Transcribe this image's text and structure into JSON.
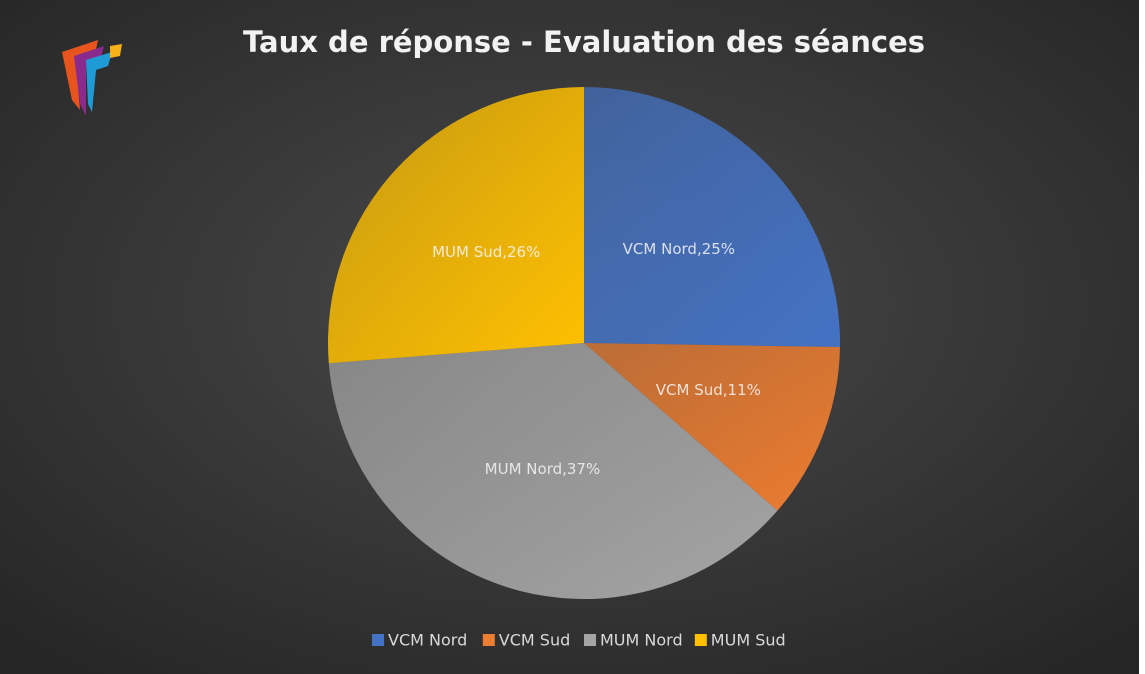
{
  "chart_data": {
    "type": "pie",
    "title": "Taux de réponse - Evaluation des séances",
    "categories": [
      "VCM Nord",
      "VCM Sud",
      "MUM Nord",
      "MUM Sud"
    ],
    "values": [
      25,
      11,
      37,
      26
    ],
    "value_labels": [
      "VCM Nord,25%",
      "VCM Sud,11%",
      "MUM Nord,37%",
      "MUM Sud,26%"
    ],
    "colors": [
      "#4472c4",
      "#ed7d31",
      "#a5a5a5",
      "#ffc000"
    ],
    "legend": "bottom"
  }
}
